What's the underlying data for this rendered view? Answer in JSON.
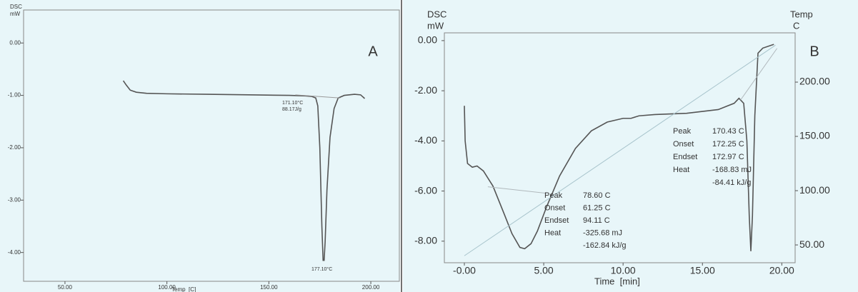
{
  "chart_data": [
    {
      "type": "line",
      "title": "A",
      "ylabel": "DSC",
      "yunit": "mW",
      "xlabel": "Temp  [C]",
      "xlim": [
        29.7,
        214
      ],
      "xticks": [
        {
          "value": 50,
          "label": "50.00"
        },
        {
          "value": 100,
          "label": "100.00"
        },
        {
          "value": 150,
          "label": "150.00"
        },
        {
          "value": 200,
          "label": "200.00"
        }
      ],
      "ylim": [
        -4.55,
        0.63
      ],
      "yticks": [
        {
          "value": 0,
          "label": "0.00"
        },
        {
          "value": -1,
          "label": "-1.00"
        },
        {
          "value": -2,
          "label": "-2.00"
        },
        {
          "value": -3,
          "label": "-3.00"
        },
        {
          "value": -4,
          "label": "-4.00"
        }
      ],
      "series": [
        {
          "color": "#555555",
          "x": [
            78.6,
            80,
            82,
            85,
            90,
            100,
            120,
            140,
            160,
            168,
            171,
            173,
            174,
            175,
            176,
            176.6,
            177.1,
            177.6,
            178.5,
            180,
            182,
            184,
            187,
            192,
            195,
            197
          ],
          "values": [
            -0.72,
            -0.8,
            -0.9,
            -0.94,
            -0.96,
            -0.97,
            -0.98,
            -0.99,
            -1.0,
            -1.01,
            -1.02,
            -1.05,
            -1.2,
            -2.0,
            -3.5,
            -4.15,
            -4.15,
            -3.8,
            -2.8,
            -1.8,
            -1.25,
            -1.05,
            -1.0,
            -0.98,
            -0.99,
            -1.06
          ]
        },
        {
          "color": "#999999",
          "x": [
            163,
            185
          ],
          "values": [
            -0.99,
            -1.05
          ]
        }
      ],
      "annotations": [
        "171.10°C",
        "88.17J/g",
        "177.10°C"
      ]
    },
    {
      "type": "line",
      "title": "B",
      "ylabel": "DSC",
      "yunit": "mW",
      "y2label": "Temp",
      "y2unit": "C",
      "xlabel": "Time  [min]",
      "xlim": [
        -1.26,
        20.84
      ],
      "xticks": [
        {
          "value": 0,
          "label": "-0.00"
        },
        {
          "value": 5,
          "label": "5.00"
        },
        {
          "value": 10,
          "label": "10.00"
        },
        {
          "value": 15,
          "label": "15.00"
        },
        {
          "value": 20,
          "label": "20.00"
        }
      ],
      "ylim": [
        -8.86,
        0.31
      ],
      "yticks": [
        {
          "value": 0,
          "label": "0.00"
        },
        {
          "value": -2,
          "label": "-2.00"
        },
        {
          "value": -4,
          "label": "-4.00"
        },
        {
          "value": -6,
          "label": "-6.00"
        },
        {
          "value": -8,
          "label": "-8.00"
        }
      ],
      "y2lim": [
        33.6,
        245.4
      ],
      "y2ticks": [
        {
          "value": 200,
          "label": "200.00"
        },
        {
          "value": 150,
          "label": "150.00"
        },
        {
          "value": 100,
          "label": "100.00"
        },
        {
          "value": 50,
          "label": "50.00"
        }
      ],
      "series": [
        {
          "color": "#555555",
          "x": [
            0,
            0.05,
            0.2,
            0.5,
            0.8,
            1.2,
            1.8,
            2.5,
            3.0,
            3.5,
            3.8,
            4.2,
            4.6,
            5.2,
            6,
            7,
            8,
            9,
            10,
            10.5,
            11,
            12,
            14,
            16,
            17,
            17.3,
            17.6,
            17.8,
            17.95,
            18.05,
            18.15,
            18.3,
            18.5,
            18.8,
            19.5
          ],
          "values": [
            -2.6,
            -4.0,
            -4.9,
            -5.05,
            -5.0,
            -5.2,
            -5.8,
            -6.9,
            -7.7,
            -8.25,
            -8.3,
            -8.1,
            -7.6,
            -6.6,
            -5.4,
            -4.3,
            -3.6,
            -3.25,
            -3.1,
            -3.1,
            -3.0,
            -2.95,
            -2.9,
            -2.75,
            -2.5,
            -2.3,
            -2.5,
            -4.0,
            -7.0,
            -8.4,
            -7.0,
            -3.0,
            -0.5,
            -0.3,
            -0.15
          ]
        },
        {
          "color": "#a8c4cc",
          "axis": "y2",
          "x": [
            0,
            19.6
          ],
          "values": [
            40,
            234
          ]
        },
        {
          "color": "#b0b8bc",
          "x": [
            1.48,
            5.17
          ],
          "values": [
            -5.83,
            -6.09
          ]
        },
        {
          "color": "#b0b8bc",
          "x": [
            17.4,
            19.7
          ],
          "values": [
            -2.37,
            -0.31
          ]
        }
      ],
      "peak_tables": [
        {
          "rows": [
            [
              "Peak",
              "170.43 C"
            ],
            [
              "Onset",
              "172.25 C"
            ],
            [
              "Endset",
              "172.97 C"
            ],
            [
              "Heat",
              "-168.83 mJ"
            ],
            [
              "-84.41 kJ/g"
            ]
          ]
        },
        {
          "rows": [
            [
              "Peak",
              "78.60 C"
            ],
            [
              "Onset",
              "61.25 C"
            ],
            [
              "Endset",
              "94.11 C"
            ],
            [
              "Heat",
              "-325.68 mJ"
            ],
            [
              "-162.84 kJ/g"
            ]
          ]
        }
      ]
    }
  ]
}
